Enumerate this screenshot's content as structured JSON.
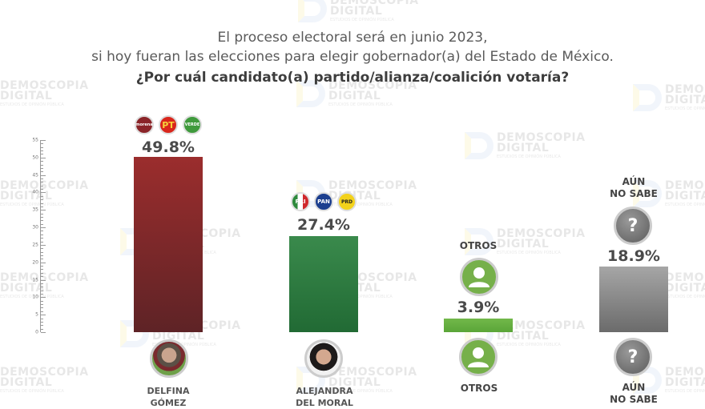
{
  "header": {
    "line1": "El proceso electoral será en junio 2023,",
    "line2": "si hoy fueran las elecciones para elegir gobernador(a) del Estado de México.",
    "line3": "¿Por cuál candidato(a) partido/alianza/coalición votaría?"
  },
  "watermark": {
    "line1": "DEMOSCOPIA",
    "line2": "DIGITAL",
    "line3": "ESTUDIOS DE OPINIÓN PÚBLICA"
  },
  "axis": {
    "ticks": [
      "0",
      "5",
      "10",
      "15",
      "20",
      "25",
      "30",
      "35",
      "40",
      "45",
      "50",
      "55"
    ]
  },
  "candidates": [
    {
      "name_line1": "DELFINA",
      "name_line2": "GÓMEZ",
      "value_label": "49.8%",
      "parties": [
        "morena",
        "PT",
        "VERDE"
      ],
      "color_top": "#9b2d2d",
      "color_bottom": "#5e2326"
    },
    {
      "name_line1": "ALEJANDRA",
      "name_line2": "DEL MORAL",
      "value_label": "27.4%",
      "parties": [
        "PRI",
        "PAN",
        "PRD"
      ],
      "color_top": "#3a8a4c",
      "color_bottom": "#216a34"
    },
    {
      "name_line1": "OTROS",
      "top_label": "OTROS",
      "value_label": "3.9%",
      "color_top": "#72b84a",
      "color_bottom": "#5aa538"
    },
    {
      "name_line1": "AÚN",
      "name_line2": "NO SABE",
      "top_label_line1": "AÚN",
      "top_label_line2": "NO SABE",
      "value_label": "18.9%",
      "icon_glyph": "?",
      "color_top": "#9e9e9e",
      "color_bottom": "#6b6b6b"
    }
  ],
  "chart_data": {
    "type": "bar",
    "title": "El proceso electoral será en junio 2023, si hoy fueran las elecciones para elegir gobernador(a) del Estado de México. ¿Por cuál candidato(a) partido/alianza/coalición votaría?",
    "categories": [
      "Delfina Gómez",
      "Alejandra del Moral",
      "Otros",
      "Aún no sabe"
    ],
    "values": [
      49.8,
      27.4,
      3.9,
      18.9
    ],
    "xlabel": "",
    "ylabel": "",
    "ylim": [
      0,
      55
    ],
    "yticks": [
      0,
      5,
      10,
      15,
      20,
      25,
      30,
      35,
      40,
      45,
      50,
      55
    ],
    "grid": false,
    "legend": "none",
    "colors": [
      "#8b2a2c",
      "#2e7d3f",
      "#6ab245",
      "#8a8a8a"
    ]
  }
}
